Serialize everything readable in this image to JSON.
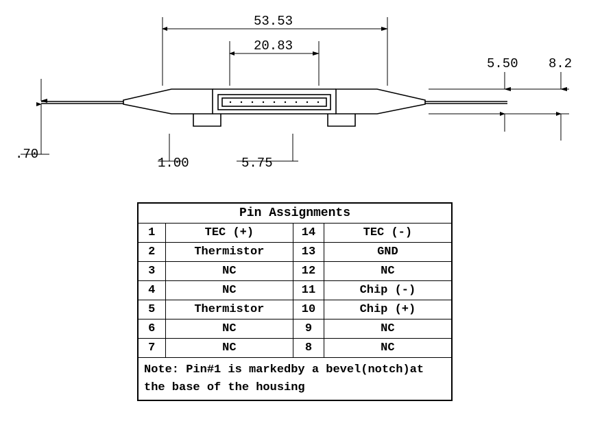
{
  "drawing": {
    "dims": {
      "d1": "53.53",
      "d2": "20.83",
      "d3": "5.50",
      "d4": "8.2",
      "d5": ".70",
      "d6": "1.00",
      "d7": "5.75"
    },
    "stroke": "#000000",
    "stroke_width": 1.6,
    "thin_stroke_width": 1,
    "font_size": 18,
    "font_family": "Courier New, monospace"
  },
  "table": {
    "title": "Pin Assignments",
    "rows": [
      {
        "ln": "1",
        "ll": "TEC (+)",
        "rn": "14",
        "rl": "TEC (-)"
      },
      {
        "ln": "2",
        "ll": "Thermistor",
        "rn": "13",
        "rl": "GND"
      },
      {
        "ln": "3",
        "ll": "NC",
        "rn": "12",
        "rl": "NC"
      },
      {
        "ln": "4",
        "ll": "NC",
        "rn": "11",
        "rl": "Chip (-)"
      },
      {
        "ln": "5",
        "ll": "Thermistor",
        "rn": "10",
        "rl": "Chip (+)"
      },
      {
        "ln": "6",
        "ll": "NC",
        "rn": "9",
        "rl": "NC"
      },
      {
        "ln": "7",
        "ll": "NC",
        "rn": "8",
        "rl": "NC"
      }
    ],
    "note": "Note: Pin#1 is markedby a bevel(notch)at the base of the housing",
    "border_color": "#000000",
    "font_family": "Courier New, monospace"
  }
}
